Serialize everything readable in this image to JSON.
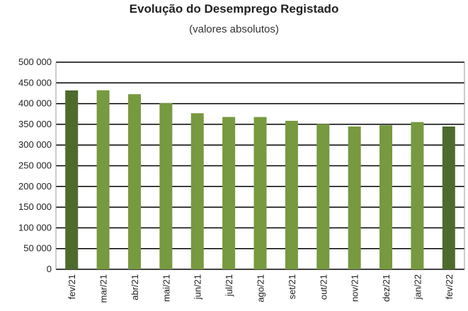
{
  "chart_data": {
    "type": "bar",
    "title": "Evolução do Desemprego Registado",
    "subtitle": "(valores absolutos)",
    "categories": [
      "fev/21",
      "mar/21",
      "abr/21",
      "mai/21",
      "jun/21",
      "jul/21",
      "ago/21",
      "set/21",
      "out/21",
      "nov/21",
      "dez/21",
      "jan/22",
      "fev/22"
    ],
    "values": [
      431900,
      432200,
      422800,
      401500,
      376800,
      367700,
      367600,
      358500,
      350700,
      344900,
      347800,
      355500,
      344800
    ],
    "highlighted": [
      "fev/21",
      "fev/22"
    ],
    "ylim": [
      0,
      500000
    ],
    "yticks": [
      0,
      50000,
      100000,
      150000,
      200000,
      250000,
      300000,
      350000,
      400000,
      450000,
      500000
    ],
    "ytick_labels": [
      "0",
      "50 000",
      "100 000",
      "150 000",
      "200 000",
      "250 000",
      "300 000",
      "350 000",
      "400 000",
      "450 000",
      "500 000"
    ],
    "grid": true,
    "colors": {
      "bar": "#77993f",
      "highlight": "#4e6b2e",
      "grid": "#000000",
      "plot_border": "#999999"
    }
  }
}
